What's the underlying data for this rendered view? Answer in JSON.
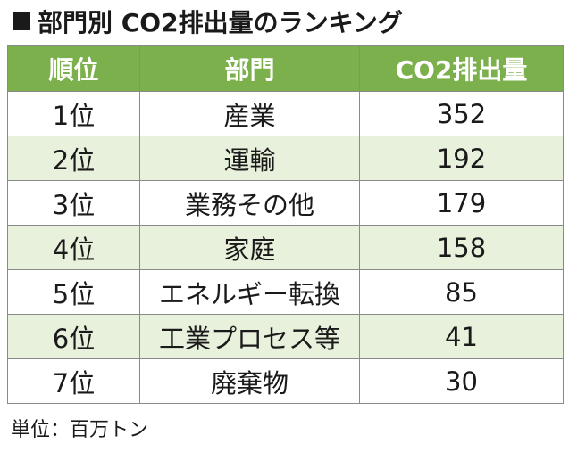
{
  "title": "部門別 CO2排出量のランキング",
  "table": {
    "headers": [
      "順位",
      "部門",
      "CO2排出量"
    ],
    "rows": [
      [
        "1位",
        "産業",
        "352"
      ],
      [
        "2位",
        "運輸",
        "192"
      ],
      [
        "3位",
        "業務その他",
        "179"
      ],
      [
        "4位",
        "家庭",
        "158"
      ],
      [
        "5位",
        "エネルギー転換",
        "85"
      ],
      [
        "6位",
        "工業プロセス等",
        "41"
      ],
      [
        "7位",
        "廃棄物",
        "30"
      ]
    ]
  },
  "unit_note": "単位：百万トン",
  "colors": {
    "header_bg": "#7bb04c",
    "alt_row_bg": "#e8f1dc",
    "border": "#8a8a8a"
  }
}
